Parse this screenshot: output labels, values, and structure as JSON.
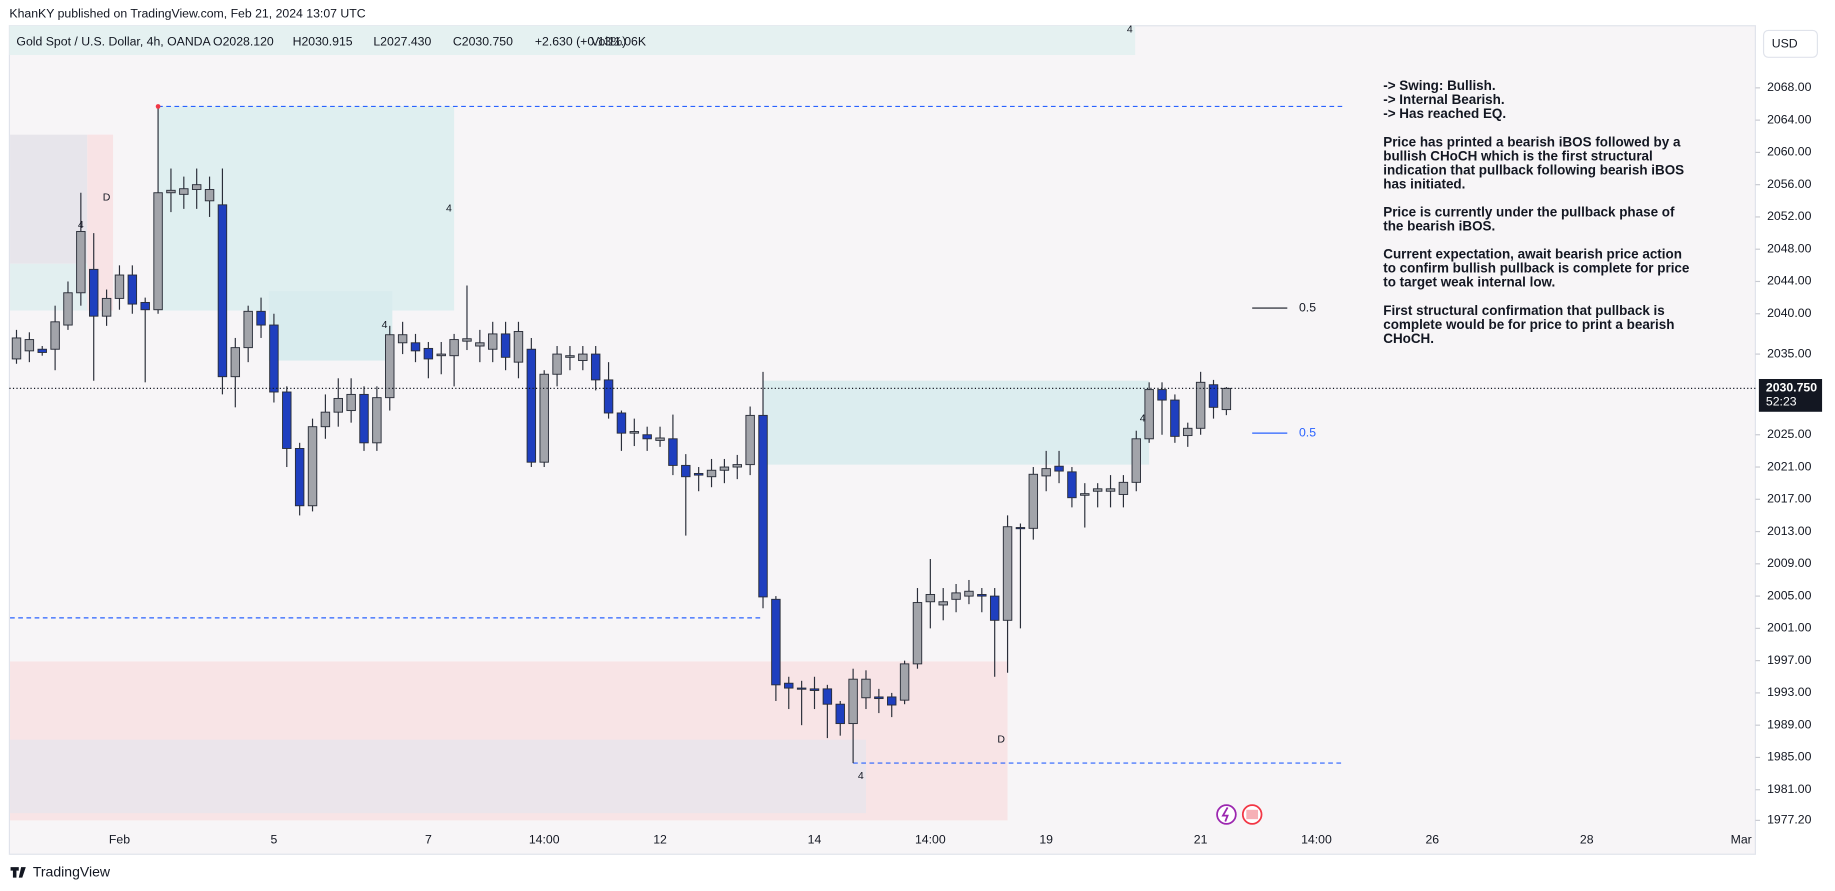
{
  "header": {
    "published": "KhanKY published on TradingView.com, Feb 21, 2024 13:07 UTC",
    "currency": "USD",
    "footer": "TradingView"
  },
  "legend": {
    "symbol": "Gold Spot / U.S. Dollar, 4h, OANDA",
    "open": "O2028.120",
    "high": "H2030.915",
    "low": "L2027.430",
    "close": "C2030.750",
    "change": "+2.630 (+0.13%)",
    "volume": "Vol11.06K"
  },
  "chart_data": {
    "type": "candlestick",
    "up_color": "#a2a4aa",
    "down_color": "#1f3fbf",
    "ylim": [
      1973,
      2075.7
    ],
    "yticks": [
      {
        "value": 2068,
        "label": "2068.00"
      },
      {
        "value": 2064,
        "label": "2064.00"
      },
      {
        "value": 2060,
        "label": "2060.00"
      },
      {
        "value": 2056,
        "label": "2056.00"
      },
      {
        "value": 2052,
        "label": "2052.00"
      },
      {
        "value": 2048,
        "label": "2048.00"
      },
      {
        "value": 2044,
        "label": "2044.00"
      },
      {
        "value": 2040,
        "label": "2040.00"
      },
      {
        "value": 2035,
        "label": "2035.00"
      },
      {
        "value": 2025,
        "label": "2025.00"
      },
      {
        "value": 2021,
        "label": "2021.00"
      },
      {
        "value": 2017,
        "label": "2017.00"
      },
      {
        "value": 2013,
        "label": "2013.00"
      },
      {
        "value": 2009,
        "label": "2009.00"
      },
      {
        "value": 2005,
        "label": "2005.00"
      },
      {
        "value": 2001,
        "label": "2001.00"
      },
      {
        "value": 1997,
        "label": "1997.00"
      },
      {
        "value": 1993,
        "label": "1993.00"
      },
      {
        "value": 1989,
        "label": "1989.00"
      },
      {
        "value": 1985,
        "label": "1985.00"
      },
      {
        "value": 1981,
        "label": "1981.00"
      },
      {
        "value": 1977.2,
        "label": "1977.20"
      }
    ],
    "categories": [
      null,
      null,
      null,
      null,
      null,
      null,
      null,
      null,
      "Feb",
      null,
      null,
      null,
      null,
      null,
      null,
      null,
      null,
      null,
      null,
      null,
      "5",
      null,
      null,
      null,
      null,
      null,
      null,
      null,
      null,
      null,
      null,
      null,
      "7",
      null,
      null,
      null,
      null,
      null,
      null,
      null,
      null,
      "14:00",
      null,
      null,
      null,
      null,
      null,
      null,
      null,
      null,
      "12",
      null,
      null,
      null,
      null,
      null,
      null,
      null,
      null,
      null,
      null,
      null,
      "14",
      null,
      null,
      null,
      null,
      null,
      null,
      null,
      null,
      "14:00",
      null,
      null,
      null,
      null,
      null,
      null,
      null,
      null,
      "19",
      null,
      null,
      null,
      null,
      null,
      null,
      null,
      null,
      null,
      null,
      null,
      "21",
      null,
      null,
      null,
      null,
      null,
      null,
      null,
      null,
      "14:00",
      null,
      null,
      null,
      null,
      null,
      null,
      null,
      null,
      "26",
      null,
      null,
      null,
      null,
      null,
      null,
      null,
      null,
      null,
      null,
      null,
      "28",
      null,
      null,
      null,
      null,
      null,
      null,
      null,
      null,
      null,
      null,
      null,
      "Mar"
    ],
    "open": [
      2034.4,
      2035.4,
      2035.6,
      2035.6,
      2038.6,
      2042.6,
      2045.5,
      2039.7,
      2041.9,
      2044.8,
      2041.4,
      2040.5,
      2055,
      2054.8,
      2055.4,
      2054,
      2053.5,
      2032.2,
      2035.8,
      2040.3,
      2038.6,
      2030.3,
      2023.3,
      2016.2,
      2026,
      2027.8,
      2028,
      2030,
      2024,
      2029.6,
      2036.4,
      2036.4,
      2035.7,
      2034.8,
      2034.8,
      2036.6,
      2036,
      2035.6,
      2037.5,
      2034,
      2035.6,
      2021.6,
      2032.5,
      2034.6,
      2034.2,
      2035,
      2031.8,
      2027.7,
      2025.2,
      2025,
      2024.3,
      2024.5,
      2021.2,
      2020.2,
      2019.8,
      2020.6,
      2021,
      2021.3,
      2027.4,
      2004.6,
      1994.2,
      1993.6,
      1993.5,
      1993.5,
      1991.6,
      1989.2,
      1992.4,
      1992.5,
      1992.5,
      1992.1,
      1996.6,
      2004.3,
      2003.9,
      2004.6,
      2005,
      2005.2,
      2005,
      2002,
      2013.5,
      2013.4,
      2019.9,
      2021.1,
      2020.4,
      2017.5,
      2018,
      2018,
      2017.6,
      2019.1,
      2024.5,
      2030.6,
      2029.3,
      2024.9,
      2025.8,
      2031.2,
      2028.12,
      null,
      null,
      null,
      null,
      null,
      null,
      null,
      null,
      null,
      null,
      null,
      null,
      null,
      null,
      null,
      null,
      null,
      null,
      null,
      null,
      null,
      null,
      null,
      null,
      null,
      null,
      null,
      null,
      null,
      null,
      null,
      null,
      null,
      null,
      null,
      null,
      null,
      null,
      null,
      null
    ],
    "high": [
      2038,
      2037.7,
      2036,
      2041,
      2044,
      2055,
      2050,
      2043,
      2046,
      2046,
      2042,
      2065.7,
      2058,
      2057,
      2058,
      2057,
      2058,
      2037,
      2041,
      2042,
      2040,
      2031,
      2024,
      2027,
      2030,
      2032,
      2032,
      2031,
      2031,
      2038.5,
      2039,
      2037.5,
      2036.5,
      2036.5,
      2037.5,
      2043.5,
      2038,
      2039,
      2039,
      2039,
      2037,
      2033,
      2036,
      2036,
      2036,
      2036,
      2034,
      2028,
      2027,
      2026,
      2026,
      2027.5,
      2022.6,
      2021,
      2022,
      2022,
      2022.5,
      2028.5,
      2032.8,
      2005,
      1995,
      1994.5,
      1995,
      1994,
      1992,
      1996,
      1995.8,
      1993.5,
      1993,
      1997,
      2006,
      2009.6,
      2006,
      2006.5,
      2007,
      2006,
      2006,
      2015,
      2014,
      2021,
      2023,
      2023,
      2021,
      2019,
      2019,
      2020,
      2020,
      2025.5,
      2031.5,
      2031.5,
      2030,
      2026.5,
      2032.8,
      2031.8,
      2030.915,
      null,
      null,
      null,
      null,
      null,
      null,
      null,
      null,
      null,
      null,
      null,
      null,
      null,
      null,
      null,
      null,
      null,
      null,
      null,
      null,
      null,
      null,
      null,
      null,
      null,
      null,
      null,
      null,
      null,
      null,
      null,
      null,
      null,
      null,
      null,
      null,
      null,
      null,
      null,
      null
    ],
    "low": [
      2033.8,
      2034,
      2034.8,
      2033,
      2038,
      2041,
      2031.7,
      2038.5,
      2040.5,
      2040,
      2031.5,
      2040,
      2052.6,
      2053,
      2053,
      2052,
      2030,
      2028.4,
      2034,
      2037,
      2029,
      2021,
      2015,
      2015.5,
      2024.5,
      2026,
      2026.5,
      2023,
      2023,
      2028,
      2035,
      2034,
      2032,
      2032.5,
      2031,
      2035.5,
      2034,
      2034,
      2033,
      2032,
      2021,
      2021,
      2031,
      2033,
      2033,
      2030.5,
      2027,
      2023,
      2023.6,
      2023,
      2023.5,
      2020,
      2012.5,
      2018,
      2018.5,
      2019,
      2019.5,
      2020,
      2003.5,
      1992,
      1991,
      1989,
      1991,
      1987.4,
      1987.7,
      1984.3,
      1991,
      1990.5,
      1990,
      1991.6,
      1996,
      2001,
      2002,
      2003,
      2004,
      2003,
      1995,
      1995.5,
      2001,
      2012,
      2018,
      2019,
      2016,
      2013.5,
      2016,
      2016,
      2016,
      2018,
      2024,
      2025,
      2024,
      2023.5,
      2025,
      2027,
      2027.43,
      null,
      null,
      null,
      null,
      null,
      null,
      null,
      null,
      null,
      null,
      null,
      null,
      null,
      null,
      null,
      null,
      null,
      null,
      null,
      null,
      null,
      null,
      null,
      null,
      null,
      null,
      null,
      null,
      null,
      null,
      null,
      null,
      null,
      null,
      null,
      null,
      null,
      null,
      null,
      null
    ],
    "close": [
      2037,
      2036.8,
      2035.2,
      2039,
      2042.6,
      2050.2,
      2039.7,
      2041.9,
      2044.8,
      2041.2,
      2040.5,
      2055,
      2055.3,
      2055.5,
      2056,
      2055.4,
      2032.2,
      2035.8,
      2040.3,
      2038.6,
      2030.3,
      2023.3,
      2016.2,
      2026,
      2027.8,
      2029.5,
      2030,
      2024,
      2029.6,
      2037.4,
      2037.4,
      2035.4,
      2034.4,
      2035,
      2036.8,
      2036.9,
      2036.4,
      2037.5,
      2034.6,
      2037.8,
      2021.6,
      2032.5,
      2035,
      2034.8,
      2035,
      2031.8,
      2027.7,
      2025.2,
      2025.4,
      2024.5,
      2024.6,
      2021.2,
      2019.8,
      2020,
      2020.6,
      2021,
      2021.3,
      2027.4,
      2004.9,
      1994,
      1993.6,
      1993.5,
      1993.3,
      1991.6,
      1989.2,
      1994.7,
      1994.7,
      1992.3,
      1991.5,
      1996.6,
      2004.2,
      2005.2,
      2004.3,
      2005.4,
      2005.6,
      2005,
      2002,
      2013.6,
      2013.4,
      2020.1,
      2020.8,
      2020.5,
      2017.2,
      2017.7,
      2018.3,
      2018.3,
      2019.1,
      2024.5,
      2030.6,
      2029.3,
      2024.8,
      2025.8,
      2031.5,
      2028.4,
      2030.75,
      null,
      null,
      null,
      null,
      null,
      null,
      null,
      null,
      null,
      null,
      null,
      null,
      null,
      null,
      null,
      null,
      null,
      null,
      null,
      null,
      null,
      null,
      null,
      null,
      null,
      null,
      null,
      null,
      null,
      null,
      null,
      null,
      null,
      null,
      null,
      null,
      null,
      null,
      null,
      null
    ],
    "last_price": {
      "value": 2030.75,
      "label": "2030.750",
      "countdown": "52:23"
    },
    "zones": [
      {
        "from": -0.5,
        "to": 5.5,
        "top": 2062.2,
        "bottom": 2046.2,
        "color": "#e7e5eb"
      },
      {
        "from": -0.5,
        "to": 5.5,
        "top": 2046.2,
        "bottom": 2040.4,
        "color": "#e2eff0"
      },
      {
        "from": 5.5,
        "to": 7.5,
        "top": 2062.2,
        "bottom": 2040.4,
        "color": "#f8e3e5"
      },
      {
        "from": 11,
        "to": 34,
        "top": 2065.7,
        "bottom": 2040.4,
        "color": "#dfeff0"
      },
      {
        "from": 19.6,
        "to": 29.2,
        "top": 2042.8,
        "bottom": 2034.2,
        "color": "#d9ecee"
      },
      {
        "from": 58,
        "to": 88,
        "top": 2031.7,
        "bottom": 2021.3,
        "color": "#dcedef"
      },
      {
        "from": -0.5,
        "to": 77,
        "top": 1996.9,
        "bottom": 1977.2,
        "color": "#f8e4e6"
      },
      {
        "from": -0.5,
        "to": 66,
        "top": 1987.2,
        "bottom": 1978.1,
        "color": "#ebe5eb"
      }
    ],
    "levels": [
      {
        "price": 2065.7,
        "from": 11,
        "to": 103,
        "color": "#2962ff"
      },
      {
        "price": 2002.3,
        "from": -0.5,
        "to": 58,
        "color": "#2962ff"
      },
      {
        "price": 1984.3,
        "from": 65,
        "to": 103,
        "color": "#2962ff"
      }
    ],
    "labels": [
      {
        "text": "4",
        "index": 5,
        "price": 2051
      },
      {
        "text": "D",
        "index": 7,
        "price": 2054.4
      },
      {
        "text": "4",
        "index": 33.6,
        "price": 2053
      },
      {
        "text": "4",
        "index": 28.6,
        "price": 2038.6
      },
      {
        "text": "4",
        "index": 86.5,
        "price": 2075.2
      },
      {
        "text": "4",
        "index": 87.5,
        "price": 2027
      },
      {
        "text": "D",
        "index": 76.5,
        "price": 1987.2
      },
      {
        "text": "4",
        "index": 65.6,
        "price": 1982.7
      }
    ],
    "fib_labels": [
      {
        "text": "0.5",
        "price": 2040.7,
        "color": "#131722"
      },
      {
        "text": "0.5",
        "price": 2025.2,
        "color": "#2962ff"
      }
    ],
    "annotations": [
      [
        "-> Swing: Bullish.",
        "-> Internal Bearish.",
        "-> Has reached EQ."
      ],
      [
        "Price has printed a bearish iBOS followed by a",
        "bullish CHoCH which is the first structural",
        "indication that pullback following bearish iBOS",
        "has initiated."
      ],
      [
        "Price is currently under the pullback phase of",
        "the bearish iBOS."
      ],
      [
        "Current expectation, await bearish price action",
        "to confirm bullish pullback is complete for price",
        "to target weak internal low."
      ],
      [
        "First structural confirmation that pullback is",
        "complete would be for price to print a bearish",
        "CHoCH."
      ]
    ]
  }
}
